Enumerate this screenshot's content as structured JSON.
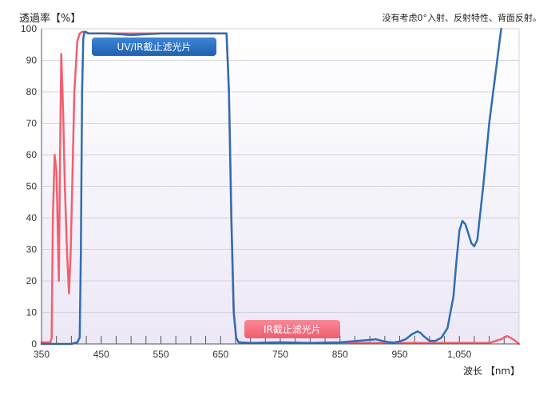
{
  "chart_data": {
    "type": "line",
    "ylabel": "透過率【%】",
    "xlabel": "波长 【nm】",
    "note": "没有考虑0°入射、反射特性、背面反射。",
    "xlim": [
      350,
      1150
    ],
    "ylim": [
      0,
      100
    ],
    "x_ticks": [
      350,
      450,
      550,
      650,
      750,
      850,
      950,
      1050
    ],
    "x_tick_labels": [
      "350",
      "450",
      "550",
      "650",
      "750",
      "850",
      "950",
      "1,050"
    ],
    "y_ticks": [
      0,
      10,
      20,
      30,
      40,
      50,
      60,
      70,
      80,
      90,
      100
    ],
    "grid": true,
    "series": [
      {
        "name": "UV/IR截止滤光片",
        "color": "#2e6db5",
        "x": [
          350,
          400,
          410,
          414,
          416,
          418,
          420,
          422,
          424,
          428,
          460,
          500,
          550,
          600,
          650,
          660,
          664,
          668,
          672,
          676,
          680,
          700,
          750,
          800,
          850,
          880,
          900,
          910,
          920,
          930,
          940,
          950,
          960,
          970,
          980,
          985,
          990,
          1000,
          1010,
          1020,
          1030,
          1040,
          1045,
          1050,
          1055,
          1060,
          1065,
          1070,
          1075,
          1080,
          1090,
          1100,
          1110,
          1120
        ],
        "y": [
          0,
          0,
          0.5,
          2,
          30,
          80,
          97,
          99,
          99,
          98.5,
          98.5,
          98,
          98.5,
          98.5,
          98.5,
          98.5,
          80,
          40,
          10,
          2,
          0.5,
          0.3,
          0.5,
          0.3,
          0.5,
          1,
          1.3,
          1.5,
          1,
          0.6,
          0.4,
          0.8,
          1.5,
          3,
          4,
          3.5,
          2.5,
          1,
          1,
          2,
          5,
          15,
          26,
          36,
          39,
          38,
          35,
          32,
          31,
          33,
          50,
          70,
          85,
          100
        ]
      },
      {
        "name": "IR截止滤光片",
        "color": "#f2606e",
        "x": [
          350,
          365,
          367,
          369,
          372,
          375,
          379,
          381,
          383,
          386,
          389,
          393,
          396,
          399,
          402,
          405,
          410,
          414,
          418,
          422,
          430,
          660,
          664,
          668,
          672,
          676,
          680,
          700,
          800,
          900,
          1000,
          1100,
          1120,
          1130,
          1140,
          1150
        ],
        "y": [
          0.5,
          0.5,
          2,
          40,
          60,
          55,
          20,
          60,
          92,
          75,
          50,
          28,
          16,
          30,
          55,
          80,
          96,
          98.5,
          99,
          99,
          98.5,
          98.5,
          80,
          40,
          10,
          2,
          0.5,
          0.3,
          0.3,
          0.3,
          0.3,
          0.3,
          1.5,
          2.5,
          1.5,
          0
        ]
      }
    ]
  },
  "labels": {
    "uvir": "UV/IR截止滤光片",
    "ir": "IR截止滤光片"
  }
}
